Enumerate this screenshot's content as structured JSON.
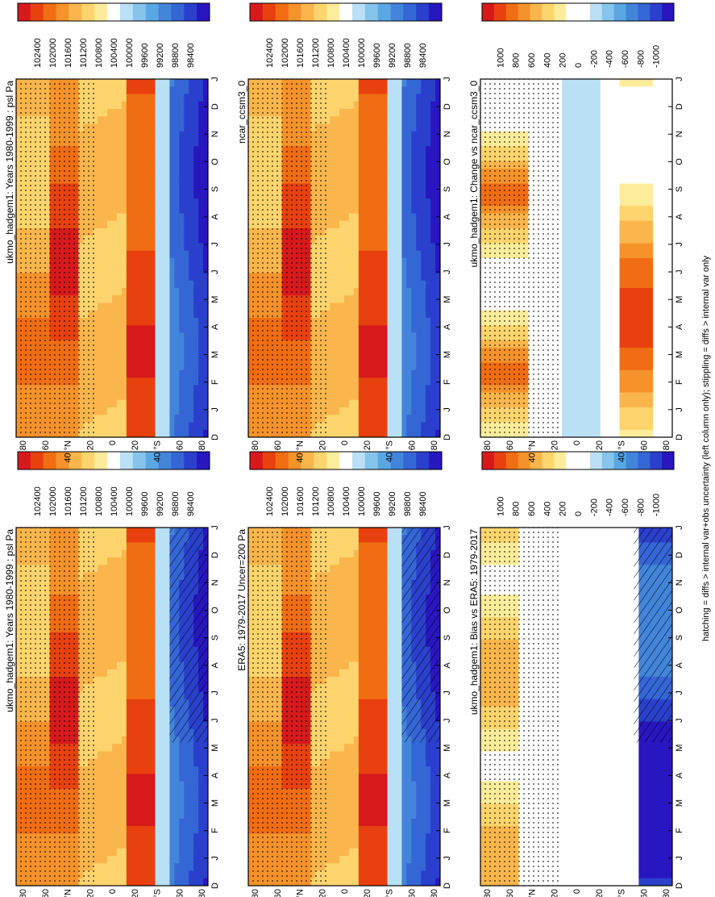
{
  "figure": {
    "footnote": "hatching = diffs > internal var+obs uncertainty (left column only); stippling = diffs > internal var only"
  },
  "chart_data": [
    {
      "id": "model_left",
      "type": "heatmap",
      "title": "ukmo_hadgem1: Years 1980-1999 : psl Pa",
      "time_labels": [
        "D",
        "J",
        "F",
        "M",
        "A",
        "M",
        "J",
        "J",
        "A",
        "S",
        "O",
        "N",
        "D",
        "J"
      ],
      "lat_labels": [
        "80",
        "60",
        "40 °N",
        "20",
        "0",
        "20",
        "40 °S",
        "60",
        "80"
      ],
      "colorbar": {
        "labels": [
          "102400",
          "102000",
          "101600",
          "101200",
          "100800",
          "100400",
          "100000",
          "99600",
          "99200",
          "98800",
          "98400"
        ],
        "colors": [
          "#d7191c",
          "#e8410f",
          "#f06d13",
          "#f5922a",
          "#fab64c",
          "#fdd46d",
          "#fdec9a",
          "#ffffff",
          "#b9e0f5",
          "#85c4ec",
          "#5ba7e4",
          "#4285db",
          "#3566d6",
          "#2a40cc",
          "#2816c0"
        ]
      },
      "stippled": true,
      "hatched": true
    },
    {
      "id": "model_right",
      "type": "heatmap",
      "title": "ukmo_hadgem1: Years 1980-1999 : psl Pa",
      "time_labels": [
        "D",
        "J",
        "F",
        "M",
        "A",
        "M",
        "J",
        "J",
        "A",
        "S",
        "O",
        "N",
        "D",
        "J"
      ],
      "lat_labels": [
        "80",
        "60",
        "40 °N",
        "20",
        "0",
        "20",
        "40 °S",
        "60",
        "80"
      ],
      "colorbar": {
        "labels": [
          "102400",
          "102000",
          "101600",
          "101200",
          "100800",
          "100400",
          "100000",
          "99600",
          "99200",
          "98800",
          "98400"
        ],
        "colors": [
          "#d7191c",
          "#e8410f",
          "#f06d13",
          "#f5922a",
          "#fab64c",
          "#fdd46d",
          "#fdec9a",
          "#ffffff",
          "#b9e0f5",
          "#85c4ec",
          "#5ba7e4",
          "#4285db",
          "#3566d6",
          "#2a40cc",
          "#2816c0"
        ]
      },
      "stippled": true,
      "hatched": false
    },
    {
      "id": "obs",
      "type": "heatmap",
      "title": "ERA5: 1979-2017 Uncer=200 Pa",
      "time_labels": [
        "D",
        "J",
        "F",
        "M",
        "A",
        "M",
        "J",
        "J",
        "A",
        "S",
        "O",
        "N",
        "D",
        "J"
      ],
      "lat_labels": [
        "80",
        "60",
        "40 °N",
        "20",
        "0",
        "20",
        "40 °S",
        "60",
        "80"
      ],
      "colorbar": {
        "labels": [
          "102400",
          "102000",
          "101600",
          "101200",
          "100800",
          "100400",
          "100000",
          "99600",
          "99200",
          "98800",
          "98400"
        ],
        "colors": [
          "#d7191c",
          "#e8410f",
          "#f06d13",
          "#f5922a",
          "#fab64c",
          "#fdd46d",
          "#fdec9a",
          "#ffffff",
          "#b9e0f5",
          "#85c4ec",
          "#5ba7e4",
          "#4285db",
          "#3566d6",
          "#2a40cc",
          "#2816c0"
        ]
      },
      "stippled": true,
      "hatched": true
    },
    {
      "id": "ref_model",
      "type": "heatmap",
      "title": "ncar_ccsm3_0",
      "time_labels": [
        "D",
        "J",
        "F",
        "M",
        "A",
        "M",
        "J",
        "J",
        "A",
        "S",
        "O",
        "N",
        "D",
        "J"
      ],
      "lat_labels": [
        "80",
        "60",
        "40 °N",
        "20",
        "0",
        "20",
        "40 °S",
        "60",
        "80"
      ],
      "colorbar": {
        "labels": [
          "102400",
          "102000",
          "101600",
          "101200",
          "100800",
          "100400",
          "100000",
          "99600",
          "99200",
          "98800",
          "98400"
        ],
        "colors": [
          "#d7191c",
          "#e8410f",
          "#f06d13",
          "#f5922a",
          "#fab64c",
          "#fdd46d",
          "#fdec9a",
          "#ffffff",
          "#b9e0f5",
          "#85c4ec",
          "#5ba7e4",
          "#4285db",
          "#3566d6",
          "#2a40cc",
          "#2816c0"
        ]
      },
      "stippled": true,
      "hatched": false
    },
    {
      "id": "bias",
      "type": "heatmap",
      "title": "ukmo_hadgem1: Bias vs ERA5: 1979-2017",
      "time_labels": [
        "D",
        "J",
        "F",
        "M",
        "A",
        "M",
        "J",
        "J",
        "A",
        "S",
        "O",
        "N",
        "D",
        "J"
      ],
      "lat_labels": [
        "80",
        "60",
        "40 °N",
        "20",
        "0",
        "20",
        "40 °S",
        "60",
        "80"
      ],
      "colorbar": {
        "labels": [
          "1000",
          "800",
          "600",
          "400",
          "200",
          "0",
          "-200",
          "-400",
          "-600",
          "-800",
          "-1000"
        ],
        "colors": [
          "#d7191c",
          "#e8410f",
          "#f06d13",
          "#f5922a",
          "#fab64c",
          "#fdd46d",
          "#fdec9a",
          "#ffffff",
          "#ffffff",
          "#b9e0f5",
          "#85c4ec",
          "#5ba7e4",
          "#4285db",
          "#3566d6",
          "#2a40cc",
          "#2816c0"
        ]
      },
      "stippled": true,
      "hatched": true
    },
    {
      "id": "change",
      "type": "heatmap",
      "title": "ukmo_hadgem1: Change vs ncar_ccsm3_0",
      "time_labels": [
        "D",
        "J",
        "F",
        "M",
        "A",
        "M",
        "J",
        "J",
        "A",
        "S",
        "O",
        "N",
        "D",
        "J"
      ],
      "lat_labels": [
        "80",
        "60",
        "40 °N",
        "20",
        "0",
        "20",
        "40 °S",
        "60",
        "80"
      ],
      "colorbar": {
        "labels": [
          "1000",
          "800",
          "600",
          "400",
          "200",
          "0",
          "-200",
          "-400",
          "-600",
          "-800",
          "-1000"
        ],
        "colors": [
          "#d7191c",
          "#e8410f",
          "#f06d13",
          "#f5922a",
          "#fab64c",
          "#fdd46d",
          "#fdec9a",
          "#ffffff",
          "#ffffff",
          "#b9e0f5",
          "#85c4ec",
          "#5ba7e4",
          "#4285db",
          "#3566d6",
          "#2a40cc",
          "#2816c0"
        ]
      },
      "stippled": true,
      "hatched": false
    }
  ]
}
